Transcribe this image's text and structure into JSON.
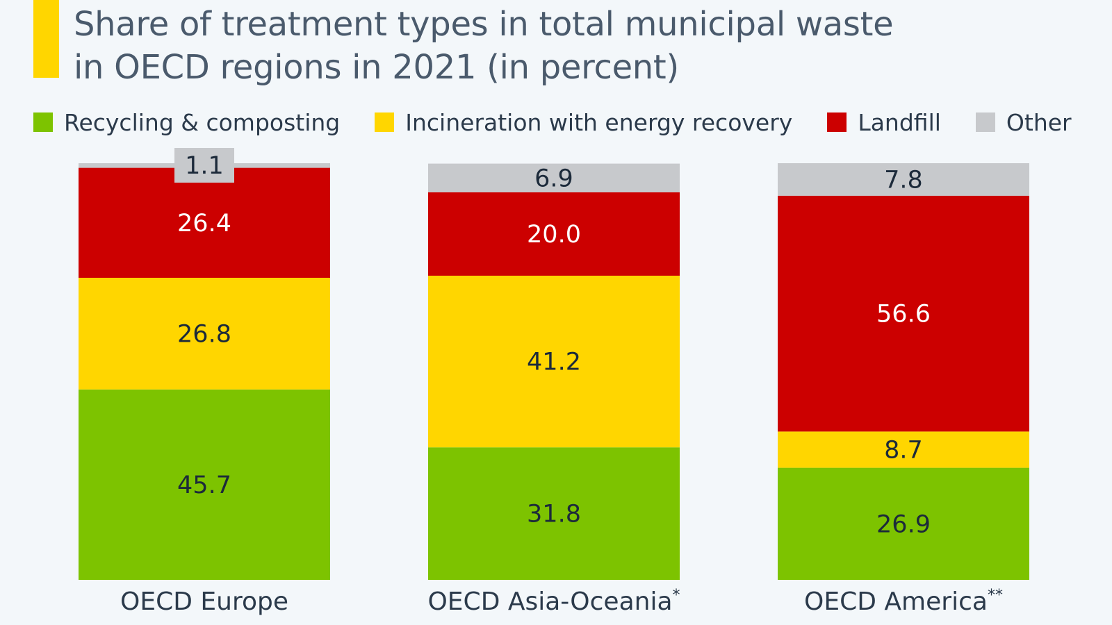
{
  "title": {
    "line1": "Share of treatment types in total municipal waste",
    "line2": "in OECD regions in 2021 (in percent)"
  },
  "legend": [
    {
      "label": "Recycling & composting",
      "color": "#7dc300"
    },
    {
      "label": "Incineration with energy recovery",
      "color": "#ffd600"
    },
    {
      "label": "Landfill",
      "color": "#cc0000"
    },
    {
      "label": "Other",
      "color": "#c7c9cc"
    }
  ],
  "chart_data": {
    "type": "bar",
    "stacked": true,
    "title": "Share of treatment types in total municipal waste in OECD regions in 2021 (in percent)",
    "categories": [
      "OECD Europe",
      "OECD Asia-Oceania",
      "OECD America"
    ],
    "category_footnotes": [
      "",
      "*",
      "**"
    ],
    "series": [
      {
        "name": "Recycling & composting",
        "color": "#7dc300",
        "values": [
          45.7,
          31.8,
          26.9
        ],
        "label_color": "#1c2a3a"
      },
      {
        "name": "Incineration with energy recovery",
        "color": "#ffd600",
        "values": [
          26.8,
          41.2,
          8.7
        ],
        "label_color": "#1c2a3a"
      },
      {
        "name": "Landfill",
        "color": "#cc0000",
        "values": [
          26.4,
          20.0,
          56.6
        ],
        "label_color": "#ffffff"
      },
      {
        "name": "Other",
        "color": "#c7c9cc",
        "values": [
          1.1,
          6.9,
          7.8
        ],
        "label_color": "#1c2a3a"
      }
    ],
    "value_labels": [
      [
        "45.7",
        "26.8",
        "26.4",
        "1.1"
      ],
      [
        "31.8",
        "41.2",
        "20.0",
        "6.9"
      ],
      [
        "26.9",
        "8.7",
        "56.6",
        "7.8"
      ]
    ],
    "ylim": [
      0,
      100
    ],
    "grid": false,
    "legend_position": "top-left"
  }
}
